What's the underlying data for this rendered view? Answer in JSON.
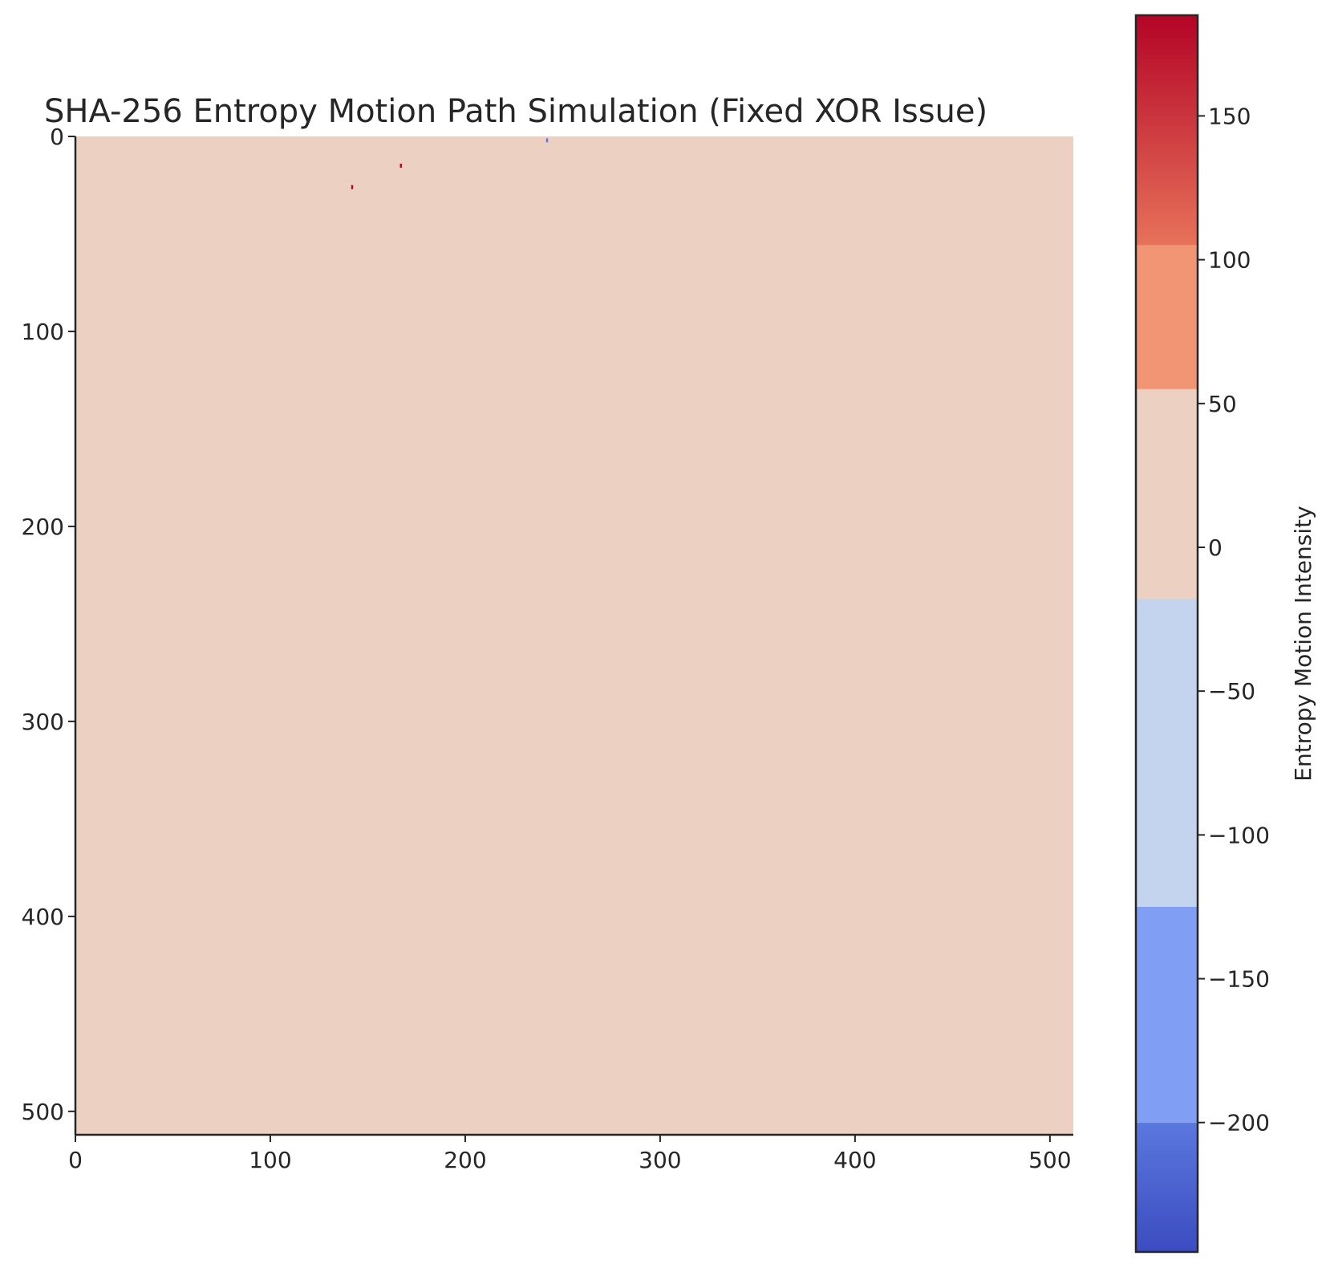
{
  "chart_data": {
    "type": "heatmap",
    "title": "SHA-256 Entropy Motion Path Simulation (Fixed XOR Issue)",
    "xlabel": "",
    "ylabel": "",
    "xlim": [
      0,
      512
    ],
    "ylim": [
      512,
      0
    ],
    "x_ticks": [
      "0",
      "100",
      "200",
      "300",
      "400",
      "500"
    ],
    "y_ticks": [
      "0",
      "100",
      "200",
      "300",
      "400",
      "500"
    ],
    "grid": false,
    "background_value": 0,
    "background_color": "#ecd0c2",
    "points": [
      {
        "x": 242,
        "y": 2,
        "value": -240
      },
      {
        "x": 167,
        "y": 15,
        "value": 180
      },
      {
        "x": 142,
        "y": 26,
        "value": 120
      }
    ],
    "colorbar": {
      "label": "Entropy Motion Intensity",
      "range": [
        -245,
        185
      ],
      "ticks": [
        "−200",
        "−150",
        "−100",
        "−50",
        "0",
        "50",
        "100",
        "150"
      ],
      "bands": [
        {
          "from": -245,
          "to": -200,
          "color_top": "#5b78df",
          "color_bottom": "#3b4cc0"
        },
        {
          "from": -200,
          "to": -125,
          "color": "#7f9ef4"
        },
        {
          "from": -125,
          "to": -18,
          "color": "#c4d4ef"
        },
        {
          "from": -18,
          "to": 55,
          "color": "#ecd0c2"
        },
        {
          "from": 55,
          "to": 105,
          "color": "#f29575"
        },
        {
          "from": 105,
          "to": 185,
          "color_top": "#b40426",
          "color_bottom": "#e7725a"
        }
      ]
    }
  }
}
